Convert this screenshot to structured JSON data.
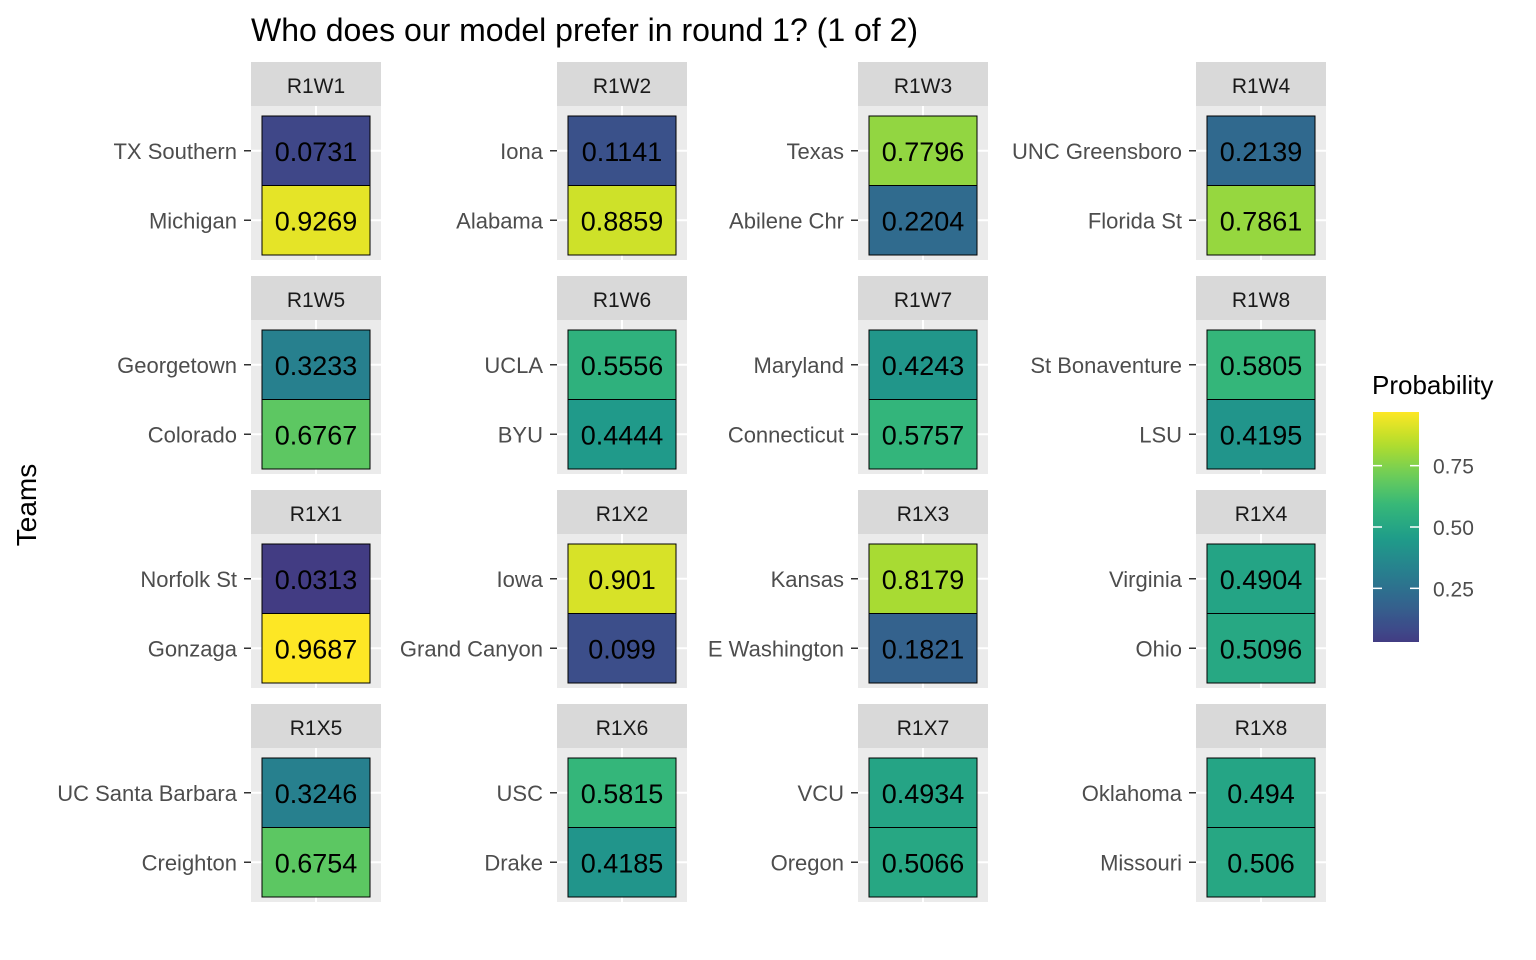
{
  "chart_data": {
    "type": "heatmap",
    "title": "Who does our model prefer in round 1? (1 of 2)",
    "ylabel": "Teams",
    "xlabel": "",
    "legend": {
      "title": "Probability",
      "position": "right",
      "ticks": [
        "0.25",
        "0.50",
        "0.75"
      ],
      "tick_values": [
        0.25,
        0.5,
        0.75
      ],
      "range": [
        0.0313,
        0.9687
      ],
      "colorscale": "viridis"
    },
    "facets": [
      {
        "label": "R1W1",
        "teams": [
          "TX Southern",
          "Michigan"
        ],
        "labels": [
          "0.0731",
          "0.9269"
        ],
        "values": [
          0.0731,
          0.9269
        ]
      },
      {
        "label": "R1W2",
        "teams": [
          "Iona",
          "Alabama"
        ],
        "labels": [
          "0.1141",
          "0.8859"
        ],
        "values": [
          0.1141,
          0.8859
        ]
      },
      {
        "label": "R1W3",
        "teams": [
          "Texas",
          "Abilene Chr"
        ],
        "labels": [
          "0.7796",
          "0.2204"
        ],
        "values": [
          0.7796,
          0.2204
        ]
      },
      {
        "label": "R1W4",
        "teams": [
          "UNC Greensboro",
          "Florida St"
        ],
        "labels": [
          "0.2139",
          "0.7861"
        ],
        "values": [
          0.2139,
          0.7861
        ]
      },
      {
        "label": "R1W5",
        "teams": [
          "Georgetown",
          "Colorado"
        ],
        "labels": [
          "0.3233",
          "0.6767"
        ],
        "values": [
          0.3233,
          0.6767
        ]
      },
      {
        "label": "R1W6",
        "teams": [
          "UCLA",
          "BYU"
        ],
        "labels": [
          "0.5556",
          "0.4444"
        ],
        "values": [
          0.5556,
          0.4444
        ]
      },
      {
        "label": "R1W7",
        "teams": [
          "Maryland",
          "Connecticut"
        ],
        "labels": [
          "0.4243",
          "0.5757"
        ],
        "values": [
          0.4243,
          0.5757
        ]
      },
      {
        "label": "R1W8",
        "teams": [
          "St Bonaventure",
          "LSU"
        ],
        "labels": [
          "0.5805",
          "0.4195"
        ],
        "values": [
          0.5805,
          0.4195
        ]
      },
      {
        "label": "R1X1",
        "teams": [
          "Norfolk St",
          "Gonzaga"
        ],
        "labels": [
          "0.0313",
          "0.9687"
        ],
        "values": [
          0.0313,
          0.9687
        ]
      },
      {
        "label": "R1X2",
        "teams": [
          "Iowa",
          "Grand Canyon"
        ],
        "labels": [
          "0.901",
          "0.099"
        ],
        "values": [
          0.901,
          0.099
        ]
      },
      {
        "label": "R1X3",
        "teams": [
          "Kansas",
          "E Washington"
        ],
        "labels": [
          "0.8179",
          "0.1821"
        ],
        "values": [
          0.8179,
          0.1821
        ]
      },
      {
        "label": "R1X4",
        "teams": [
          "Virginia",
          "Ohio"
        ],
        "labels": [
          "0.4904",
          "0.5096"
        ],
        "values": [
          0.4904,
          0.5096
        ]
      },
      {
        "label": "R1X5",
        "teams": [
          "UC Santa Barbara",
          "Creighton"
        ],
        "labels": [
          "0.3246",
          "0.6754"
        ],
        "values": [
          0.3246,
          0.6754
        ]
      },
      {
        "label": "R1X6",
        "teams": [
          "USC",
          "Drake"
        ],
        "labels": [
          "0.5815",
          "0.4185"
        ],
        "values": [
          0.5815,
          0.4185
        ]
      },
      {
        "label": "R1X7",
        "teams": [
          "VCU",
          "Oregon"
        ],
        "labels": [
          "0.4934",
          "0.5066"
        ],
        "values": [
          0.4934,
          0.5066
        ]
      },
      {
        "label": "R1X8",
        "teams": [
          "Oklahoma",
          "Missouri"
        ],
        "labels": [
          "0.494",
          "0.506"
        ],
        "values": [
          0.494,
          0.506
        ]
      }
    ]
  }
}
